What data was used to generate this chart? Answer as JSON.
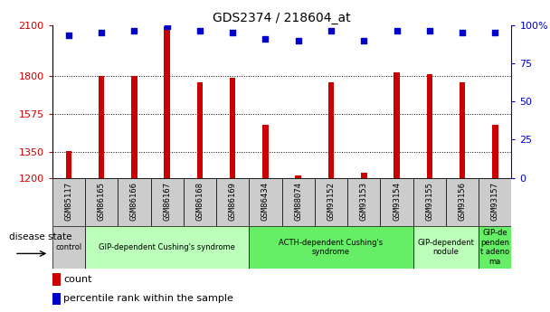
{
  "title": "GDS2374 / 218604_at",
  "samples": [
    "GSM85117",
    "GSM86165",
    "GSM86166",
    "GSM86167",
    "GSM86168",
    "GSM86169",
    "GSM86434",
    "GSM88074",
    "GSM93152",
    "GSM93153",
    "GSM93154",
    "GSM93155",
    "GSM93156",
    "GSM93157"
  ],
  "counts": [
    1360,
    1800,
    1800,
    2090,
    1760,
    1790,
    1510,
    1215,
    1760,
    1230,
    1820,
    1810,
    1760,
    1510
  ],
  "percentile_ranks": [
    93,
    95,
    96,
    99,
    96,
    95,
    91,
    90,
    96,
    90,
    96,
    96,
    95,
    95
  ],
  "ymin": 1200,
  "ymax": 2100,
  "yticks_left": [
    1200,
    1350,
    1575,
    1800,
    2100
  ],
  "yticks_right": [
    0,
    25,
    50,
    75,
    100
  ],
  "ytick_right_labels": [
    "0",
    "25",
    "50",
    "75",
    "100%"
  ],
  "bar_color": "#cc0000",
  "scatter_color": "#0000cc",
  "disease_groups": [
    {
      "label": "control",
      "start": 0,
      "end": 1,
      "color": "#cccccc"
    },
    {
      "label": "GIP-dependent Cushing's syndrome",
      "start": 1,
      "end": 6,
      "color": "#bbffbb"
    },
    {
      "label": "ACTH-dependent Cushing's\nsyndrome",
      "start": 6,
      "end": 11,
      "color": "#66ee66"
    },
    {
      "label": "GIP-dependent\nnodule",
      "start": 11,
      "end": 13,
      "color": "#bbffbb"
    },
    {
      "label": "GIP-de\npenden\nt adeno\nma",
      "start": 13,
      "end": 14,
      "color": "#66ee66"
    }
  ],
  "disease_state_label": "disease state",
  "legend_count_label": "count",
  "legend_pct_label": "percentile rank within the sample",
  "bar_width": 0.18,
  "left_label_color": "#cc0000",
  "right_label_color": "#0000cc"
}
